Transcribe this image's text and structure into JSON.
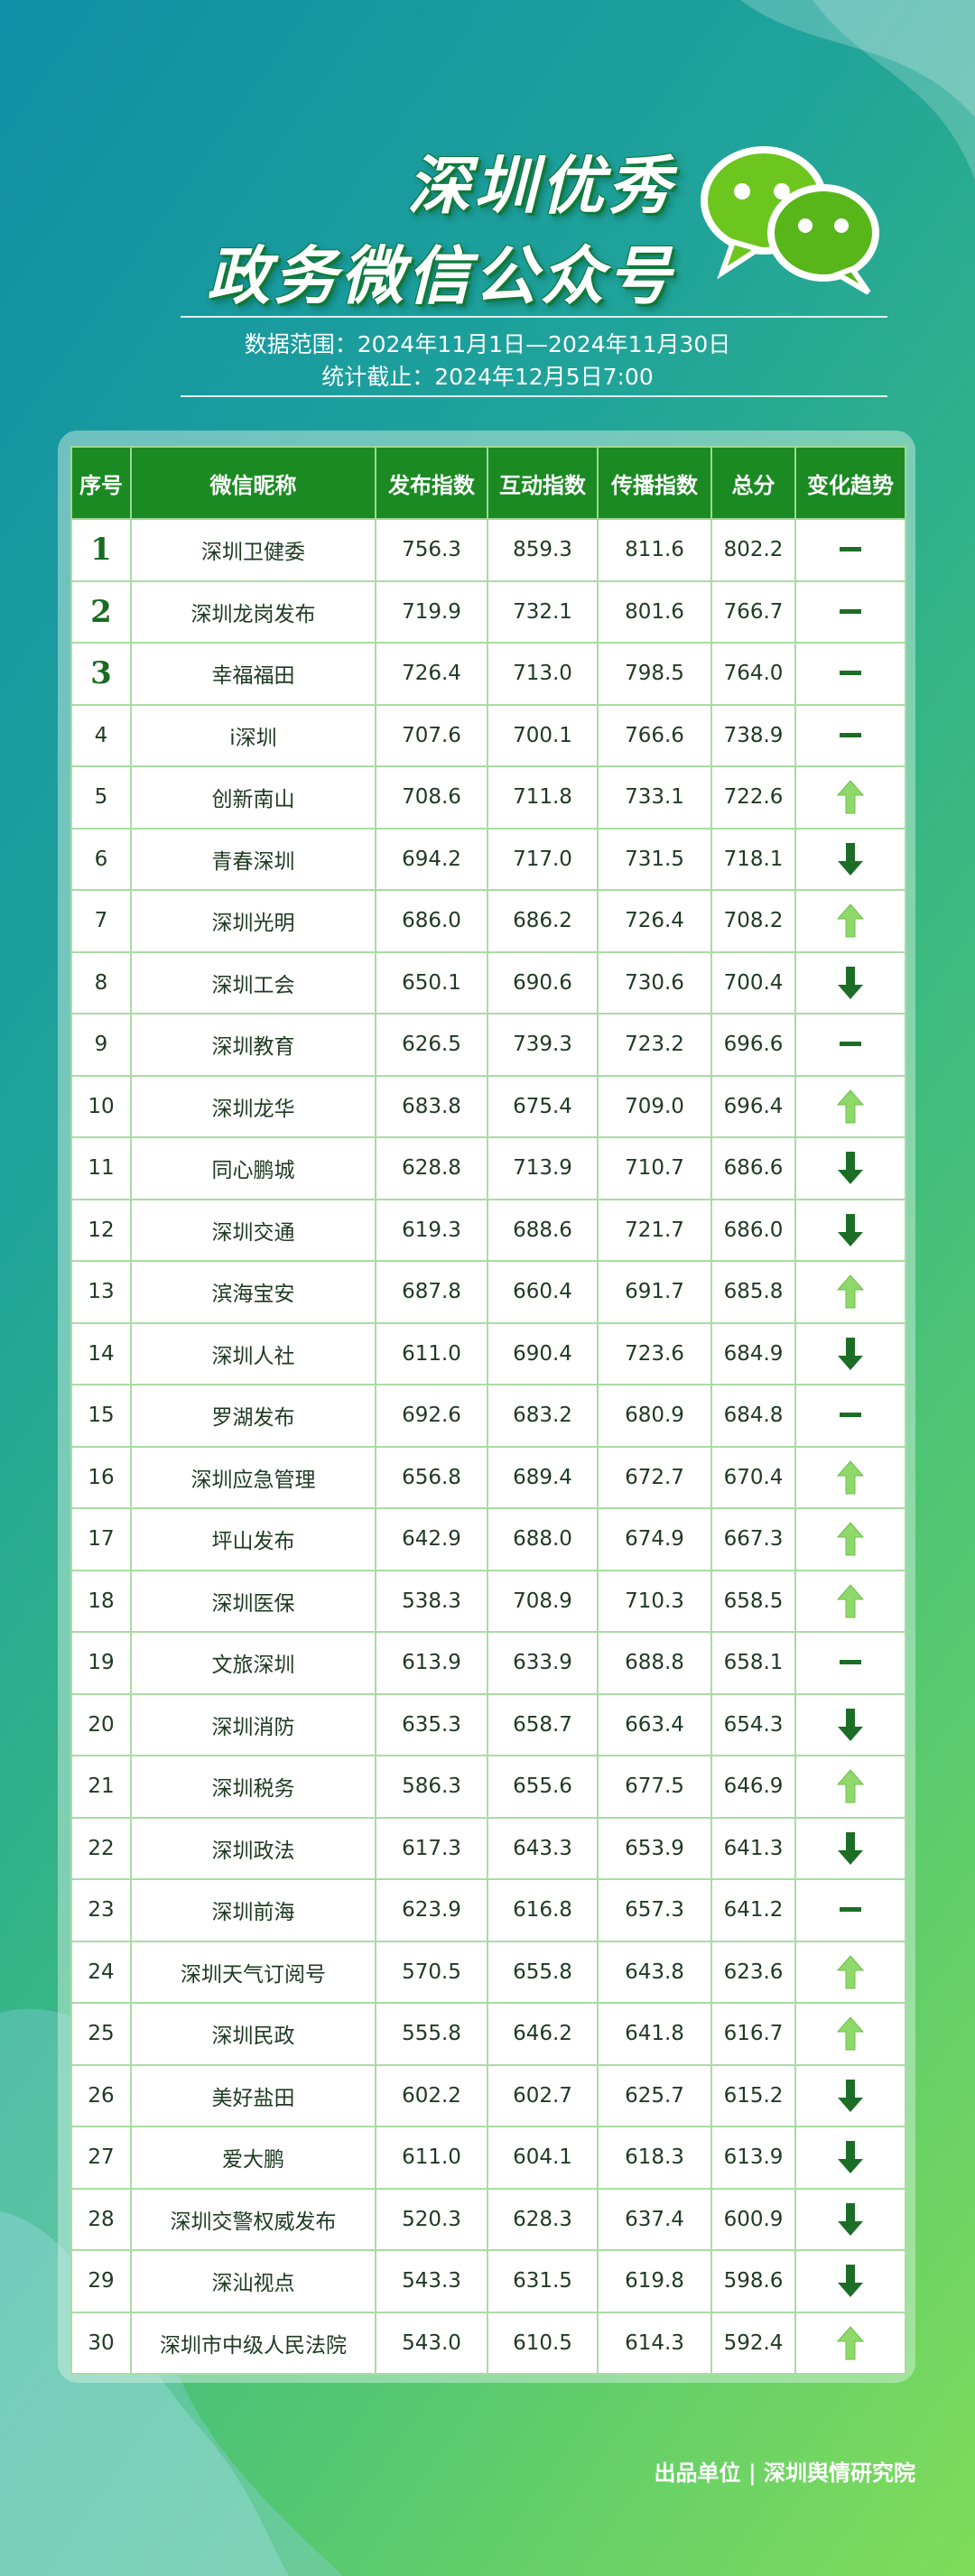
{
  "header": {
    "title_line1": "深圳优秀",
    "title_line2": "政务微信公众号",
    "range": "数据范围：2024年11月1日—2024年11月30日",
    "cutoff": "统计截止：2024年12月5日7:00"
  },
  "table": {
    "columns": [
      "序号",
      "微信昵称",
      "发布指数",
      "互动指数",
      "传播指数",
      "总分",
      "变化趋势"
    ],
    "rows": [
      [
        "1",
        "深圳卫健委",
        "756.3",
        "859.3",
        "811.6",
        "802.2"
      ],
      [
        "2",
        "深圳龙岗发布",
        "719.9",
        "732.1",
        "801.6",
        "766.7"
      ],
      [
        "3",
        "幸福福田",
        "726.4",
        "713.0",
        "798.5",
        "764.0"
      ],
      [
        "4",
        "i深圳",
        "707.6",
        "700.1",
        "766.6",
        "738.9"
      ],
      [
        "5",
        "创新南山",
        "708.6",
        "711.8",
        "733.1",
        "722.6"
      ],
      [
        "6",
        "青春深圳",
        "694.2",
        "717.0",
        "731.5",
        "718.1"
      ],
      [
        "7",
        "深圳光明",
        "686.0",
        "686.2",
        "726.4",
        "708.2"
      ],
      [
        "8",
        "深圳工会",
        "650.1",
        "690.6",
        "730.6",
        "700.4"
      ],
      [
        "9",
        "深圳教育",
        "626.5",
        "739.3",
        "723.2",
        "696.6"
      ],
      [
        "10",
        "深圳龙华",
        "683.8",
        "675.4",
        "709.0",
        "696.4"
      ],
      [
        "11",
        "同心鹏城",
        "628.8",
        "713.9",
        "710.7",
        "686.6"
      ],
      [
        "12",
        "深圳交通",
        "619.3",
        "688.6",
        "721.7",
        "686.0"
      ],
      [
        "13",
        "滨海宝安",
        "687.8",
        "660.4",
        "691.7",
        "685.8"
      ],
      [
        "14",
        "深圳人社",
        "611.0",
        "690.4",
        "723.6",
        "684.9"
      ],
      [
        "15",
        "罗湖发布",
        "692.6",
        "683.2",
        "680.9",
        "684.8"
      ],
      [
        "16",
        "深圳应急管理",
        "656.8",
        "689.4",
        "672.7",
        "670.4"
      ],
      [
        "17",
        "坪山发布",
        "642.9",
        "688.0",
        "674.9",
        "667.3"
      ],
      [
        "18",
        "深圳医保",
        "538.3",
        "708.9",
        "710.3",
        "658.5"
      ],
      [
        "19",
        "文旅深圳",
        "613.9",
        "633.9",
        "688.8",
        "658.1"
      ],
      [
        "20",
        "深圳消防",
        "635.3",
        "658.7",
        "663.4",
        "654.3"
      ],
      [
        "21",
        "深圳税务",
        "586.3",
        "655.6",
        "677.5",
        "646.9"
      ],
      [
        "22",
        "深圳政法",
        "617.3",
        "643.3",
        "653.9",
        "641.3"
      ],
      [
        "23",
        "深圳前海",
        "623.9",
        "616.8",
        "657.3",
        "641.2"
      ],
      [
        "24",
        "深圳天气订阅号",
        "570.5",
        "655.8",
        "643.8",
        "623.6"
      ],
      [
        "25",
        "深圳民政",
        "555.8",
        "646.2",
        "641.8",
        "616.7"
      ],
      [
        "26",
        "美好盐田",
        "602.2",
        "602.7",
        "625.7",
        "615.2"
      ],
      [
        "27",
        "爱大鹏",
        "611.0",
        "604.1",
        "618.3",
        "613.9"
      ],
      [
        "28",
        "深圳交警权威发布",
        "520.3",
        "628.3",
        "637.4",
        "600.9"
      ],
      [
        "29",
        "深汕视点",
        "543.3",
        "631.5",
        "619.8",
        "598.6"
      ],
      [
        "30",
        "深圳市中级人民法院",
        "543.0",
        "610.5",
        "614.3",
        "592.4"
      ]
    ],
    "trends": [
      "flat",
      "flat",
      "flat",
      "flat",
      "up",
      "down",
      "up",
      "down",
      "flat",
      "up",
      "down",
      "down",
      "up",
      "down",
      "flat",
      "up",
      "up",
      "up",
      "flat",
      "down",
      "up",
      "down",
      "flat",
      "up",
      "up",
      "down",
      "down",
      "down",
      "down",
      "up"
    ]
  },
  "footer": {
    "producer": "出品单位 | 深圳舆情研究院"
  }
}
